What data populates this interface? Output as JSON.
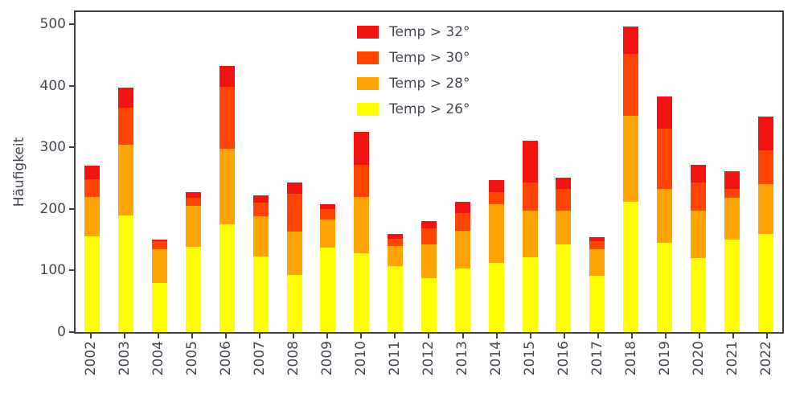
{
  "chart_data": {
    "type": "bar",
    "stacked": true,
    "title": "",
    "xlabel": "",
    "ylabel": "Häufigkeit",
    "ylim": [
      0,
      500
    ],
    "yticks": [
      0,
      100,
      200,
      300,
      400,
      500
    ],
    "grid": false,
    "legend_position": "upper center, inside plot, no frame, listed top-to-bottom from hottest to coolest",
    "categories": [
      "2002",
      "2003",
      "2004",
      "2005",
      "2006",
      "2007",
      "2008",
      "2009",
      "2010",
      "2011",
      "2012",
      "2013",
      "2014",
      "2015",
      "2016",
      "2017",
      "2018",
      "2019",
      "2020",
      "2021",
      "2022"
    ],
    "series": [
      {
        "name": "Temp > 26°",
        "color": "#ffff00",
        "values": [
          155,
          190,
          80,
          138,
          175,
          123,
          93,
          137,
          128,
          107,
          87,
          103,
          113,
          122,
          142,
          92,
          212,
          145,
          120,
          150,
          160
        ]
      },
      {
        "name": "Temp > 28°",
        "color": "#ffa404",
        "values": [
          65,
          115,
          55,
          67,
          123,
          65,
          70,
          46,
          92,
          33,
          56,
          62,
          95,
          75,
          55,
          43,
          140,
          88,
          77,
          68,
          80
        ]
      },
      {
        "name": "Temp > 30°",
        "color": "#ff4500",
        "values": [
          28,
          60,
          13,
          13,
          100,
          22,
          62,
          17,
          52,
          12,
          25,
          28,
          20,
          46,
          35,
          13,
          100,
          97,
          46,
          14,
          55
        ]
      },
      {
        "name": "Temp > 32°",
        "color": "#f11212",
        "values": [
          22,
          32,
          2,
          9,
          34,
          12,
          18,
          8,
          53,
          8,
          13,
          19,
          19,
          68,
          19,
          6,
          45,
          53,
          29,
          29,
          55
        ]
      }
    ]
  },
  "colors": {
    "axis_text": "#474756",
    "spine": "#3f3f4a",
    "background": "#ffffff"
  }
}
